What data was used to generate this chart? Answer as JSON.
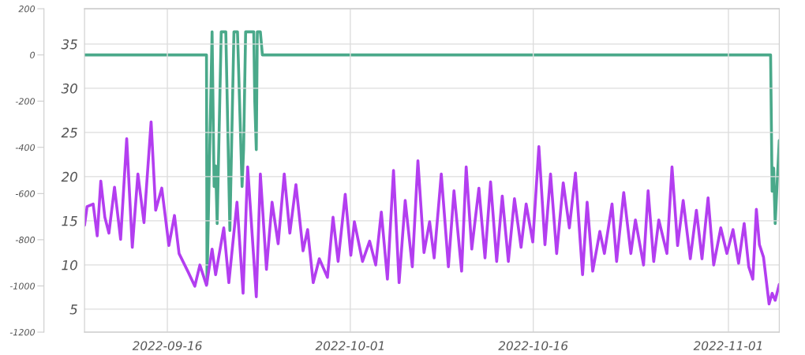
{
  "chart_data": {
    "type": "line",
    "grid": true,
    "marker": "none",
    "line_style": "solid",
    "xlim": [
      "2022-09-09T05:00",
      "2022-11-05T04:00"
    ],
    "xticks": [
      "2022-09-16",
      "2022-10-01",
      "2022-10-16",
      "2022-11-01"
    ],
    "ylim": [
      2.4,
      39
    ],
    "yticks": [
      5,
      10,
      15,
      20,
      25,
      30,
      35
    ],
    "y2lim": [
      -1200,
      200
    ],
    "y2ticks": [
      -1200,
      -1000,
      -800,
      -600,
      -400,
      -200,
      0,
      200
    ],
    "series": [
      {
        "color": "#b33ef0",
        "x": [
          "2022-09-09T05:00",
          "2022-09-09T10:00",
          "2022-09-09T22:00",
          "2022-09-10T06:00",
          "2022-09-10T13:00",
          "2022-09-10T21:00",
          "2022-09-11T05:00",
          "2022-09-11T16:00",
          "2022-09-12T04:00",
          "2022-09-12T16:00",
          "2022-09-13T03:00",
          "2022-09-13T14:00",
          "2022-09-14T02:00",
          "2022-09-14T16:00",
          "2022-09-15T01:00",
          "2022-09-15T13:00",
          "2022-09-16T03:00",
          "2022-09-16T14:00",
          "2022-09-16T23:00",
          "2022-09-17T17:00",
          "2022-09-18T06:00",
          "2022-09-18T16:00",
          "2022-09-19T05:00",
          "2022-09-19T16:00",
          "2022-09-19T23:00",
          "2022-09-20T15:00",
          "2022-09-21T01:00",
          "2022-09-21T17:00",
          "2022-09-22T05:00",
          "2022-09-22T14:00",
          "2022-09-23T07:00",
          "2022-09-23T15:00",
          "2022-09-24T03:00",
          "2022-09-24T14:00",
          "2022-09-25T02:00",
          "2022-09-25T14:00",
          "2022-09-26T01:00",
          "2022-09-26T13:00",
          "2022-09-27T03:00",
          "2022-09-27T12:00",
          "2022-09-27T23:00",
          "2022-09-28T11:00",
          "2022-09-29T03:00",
          "2022-09-29T14:00",
          "2022-09-30T00:00",
          "2022-09-30T14:00",
          "2022-10-01T01:00",
          "2022-10-01T08:00",
          "2022-10-02T00:00",
          "2022-10-02T14:00",
          "2022-10-03T02:00",
          "2022-10-03T13:00",
          "2022-10-04T01:00",
          "2022-10-04T13:00",
          "2022-10-05T00:00",
          "2022-10-05T12:00",
          "2022-10-06T02:00",
          "2022-10-06T13:00",
          "2022-10-07T01:00",
          "2022-10-07T12:00",
          "2022-10-07T21:00",
          "2022-10-08T11:00",
          "2022-10-09T01:00",
          "2022-10-09T12:00",
          "2022-10-10T03:00",
          "2022-10-10T12:00",
          "2022-10-10T23:00",
          "2022-10-11T13:00",
          "2022-10-12T01:00",
          "2022-10-12T12:00",
          "2022-10-13T00:00",
          "2022-10-13T11:00",
          "2022-10-13T23:00",
          "2022-10-14T11:00",
          "2022-10-15T00:00",
          "2022-10-15T10:00",
          "2022-10-15T23:00",
          "2022-10-16T11:00",
          "2022-10-16T23:00",
          "2022-10-17T10:00",
          "2022-10-17T22:00",
          "2022-10-18T11:00",
          "2022-10-18T23:00",
          "2022-10-19T11:00",
          "2022-10-20T01:00",
          "2022-10-20T10:00",
          "2022-10-20T21:00",
          "2022-10-21T11:00",
          "2022-10-21T20:00",
          "2022-10-22T11:00",
          "2022-10-22T20:00",
          "2022-10-23T10:00",
          "2022-10-24T00:00",
          "2022-10-24T09:00",
          "2022-10-25T01:00",
          "2022-10-25T10:00",
          "2022-10-25T21:00",
          "2022-10-26T07:00",
          "2022-10-26T23:00",
          "2022-10-27T09:00",
          "2022-10-27T20:00",
          "2022-10-28T07:00",
          "2022-10-28T21:00",
          "2022-10-29T09:00",
          "2022-10-29T20:00",
          "2022-10-30T08:00",
          "2022-10-30T19:00",
          "2022-10-31T09:00",
          "2022-10-31T21:00",
          "2022-11-01T09:00",
          "2022-11-01T20:00",
          "2022-11-02T07:00",
          "2022-11-02T16:00",
          "2022-11-03T00:00",
          "2022-11-03T07:00",
          "2022-11-03T13:00",
          "2022-11-03T21:00",
          "2022-11-04T08:00",
          "2022-11-04T14:00",
          "2022-11-04T20:00",
          "2022-11-05T04:00"
        ],
        "values": [
          14.5,
          16.6,
          16.9,
          13.3,
          19.5,
          15.4,
          13.6,
          18.8,
          12.9,
          24.3,
          12.0,
          20.3,
          14.8,
          26.2,
          16.2,
          18.7,
          12.2,
          15.6,
          11.3,
          9.2,
          7.6,
          10.0,
          7.7,
          11.8,
          8.9,
          14.2,
          8.0,
          17.1,
          6.8,
          21.1,
          6.4,
          20.3,
          9.5,
          17.1,
          12.4,
          20.3,
          13.6,
          19.1,
          11.6,
          14.0,
          8.0,
          10.7,
          8.6,
          15.4,
          10.4,
          18.0,
          11.1,
          14.9,
          10.4,
          12.7,
          10.0,
          16.0,
          8.4,
          20.7,
          8.0,
          17.3,
          9.8,
          21.8,
          11.4,
          14.9,
          10.8,
          20.3,
          9.8,
          18.4,
          9.3,
          21.1,
          11.8,
          18.7,
          10.8,
          19.4,
          10.4,
          17.8,
          10.4,
          17.5,
          12.0,
          16.9,
          12.6,
          23.4,
          12.3,
          20.3,
          11.3,
          19.3,
          14.2,
          20.4,
          8.9,
          17.1,
          9.3,
          13.8,
          11.3,
          16.9,
          10.4,
          18.2,
          11.3,
          15.1,
          10.0,
          18.4,
          10.4,
          15.1,
          11.3,
          21.1,
          12.2,
          17.3,
          10.7,
          16.2,
          10.7,
          17.6,
          10.0,
          14.2,
          11.3,
          14.0,
          10.2,
          14.7,
          9.8,
          8.4,
          16.3,
          12.3,
          10.9,
          5.6,
          6.8,
          6.0,
          7.8
        ]
      },
      {
        "color": "#4aa98a",
        "axis": "y2",
        "x": [
          "2022-09-09T05:00",
          "2022-09-19T05:00",
          "2022-09-19T06:00",
          "2022-09-19T16:00",
          "2022-09-19T20:00",
          "2022-09-19T23:00",
          "2022-09-20T02:00",
          "2022-09-20T10:00",
          "2022-09-20T19:00",
          "2022-09-21T03:00",
          "2022-09-21T11:00",
          "2022-09-21T18:00",
          "2022-09-22T03:00",
          "2022-09-22T06:00",
          "2022-09-22T10:00",
          "2022-09-23T02:00",
          "2022-09-23T04:00",
          "2022-09-23T07:00",
          "2022-09-23T09:00",
          "2022-09-23T15:00",
          "2022-09-23T19:00",
          "2022-11-04T11:00",
          "2022-11-04T14:00",
          "2022-11-04T17:00",
          "2022-11-04T20:00",
          "2022-11-05T04:00"
        ],
        "values": [
          0,
          0,
          -990,
          100,
          -570,
          -480,
          -730,
          100,
          100,
          -760,
          100,
          100,
          -570,
          -410,
          100,
          100,
          -200,
          -410,
          100,
          100,
          0,
          0,
          -590,
          -490,
          -730,
          -370
        ]
      }
    ]
  }
}
